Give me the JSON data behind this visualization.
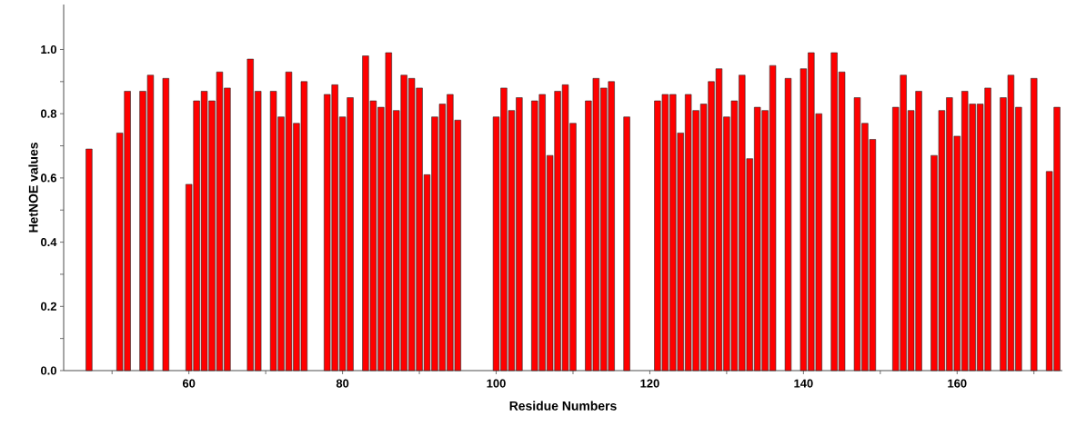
{
  "chart_data": {
    "type": "bar",
    "xlabel": "Residue Numbers",
    "ylabel": "HetNOE values",
    "color": "#ff0000",
    "x": [
      47,
      51,
      52,
      54,
      55,
      57,
      60,
      61,
      62,
      63,
      64,
      65,
      68,
      69,
      71,
      72,
      73,
      74,
      75,
      78,
      79,
      80,
      81,
      83,
      84,
      85,
      86,
      87,
      88,
      89,
      90,
      91,
      92,
      93,
      94,
      95,
      100,
      101,
      102,
      103,
      105,
      106,
      107,
      108,
      109,
      110,
      112,
      113,
      114,
      115,
      117,
      121,
      122,
      123,
      124,
      125,
      126,
      127,
      128,
      129,
      130,
      131,
      132,
      133,
      134,
      135,
      136,
      138,
      140,
      141,
      142,
      144,
      145,
      147,
      148,
      149,
      152,
      153,
      154,
      155,
      157,
      158,
      159,
      160,
      161,
      162,
      163,
      164,
      166,
      167,
      168,
      170,
      172,
      173
    ],
    "values": [
      0.69,
      0.74,
      0.87,
      0.87,
      0.92,
      0.91,
      0.58,
      0.84,
      0.87,
      0.84,
      0.93,
      0.88,
      0.97,
      0.87,
      0.87,
      0.79,
      0.93,
      0.77,
      0.9,
      0.86,
      0.89,
      0.79,
      0.85,
      0.98,
      0.84,
      0.82,
      0.99,
      0.81,
      0.92,
      0.91,
      0.88,
      0.61,
      0.79,
      0.83,
      0.86,
      0.78,
      0.79,
      0.88,
      0.81,
      0.85,
      0.84,
      0.86,
      0.67,
      0.87,
      0.89,
      0.77,
      0.84,
      0.91,
      0.88,
      0.9,
      0.79,
      0.84,
      0.86,
      0.86,
      0.74,
      0.86,
      0.81,
      0.83,
      0.9,
      0.94,
      0.79,
      0.84,
      0.92,
      0.66,
      0.82,
      0.81,
      0.95,
      0.91,
      0.94,
      0.99,
      0.8,
      0.99,
      0.93,
      0.85,
      0.77,
      0.72,
      0.82,
      0.92,
      0.81,
      0.87,
      0.67,
      0.81,
      0.85,
      0.73,
      0.87,
      0.83,
      0.83,
      0.88,
      0.85,
      0.92,
      0.82,
      0.91,
      0.62,
      0.82
    ],
    "xlim": [
      43.7,
      173.7
    ],
    "xticks": [
      {
        "value": 50,
        "label": null
      },
      60,
      {
        "value": 70,
        "label": null
      },
      80,
      {
        "value": 90,
        "label": null
      },
      100,
      {
        "value": 110,
        "label": null
      },
      120,
      {
        "value": 130,
        "label": null
      },
      140,
      {
        "value": 150,
        "label": null
      },
      160,
      {
        "value": 170,
        "label": null
      }
    ],
    "ylim": [
      0,
      1.14
    ],
    "yticks": [
      {
        "value": 0,
        "label": "0.0"
      },
      {
        "value": 0.1,
        "label": null
      },
      {
        "value": 0.2,
        "label": "0.2"
      },
      {
        "value": 0.3,
        "label": null
      },
      {
        "value": 0.4,
        "label": "0.4"
      },
      {
        "value": 0.5,
        "label": null
      },
      {
        "value": 0.6,
        "label": "0.6"
      },
      {
        "value": 0.7,
        "label": null
      },
      {
        "value": 0.8,
        "label": "0.8"
      },
      {
        "value": 0.9,
        "label": null
      },
      {
        "value": 1.0,
        "label": "1.0"
      }
    ]
  }
}
